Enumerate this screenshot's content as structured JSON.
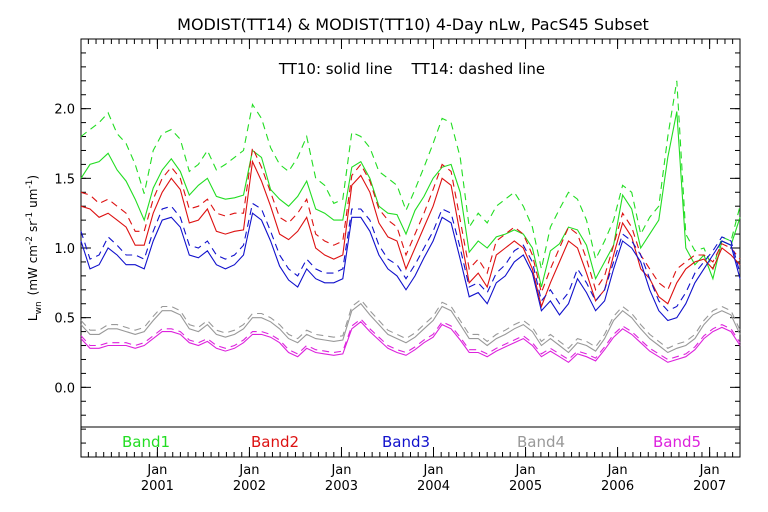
{
  "chart_data": {
    "type": "line",
    "title": "MODIST(TT14) & MODIST(TT10) 4-Day nLw, PacS45 Subset",
    "annotation": "TT10: solid line    TT14: dashed line",
    "ylabel": "Lwn (mW cm-2 sr-1 um-1)",
    "ylabel_base": "L",
    "ylabel_sub": "wn",
    "ylabel_rest": "(mW cm",
    "ylabel_sup1": "-2",
    "ylabel_mid": "sr",
    "ylabel_sup2": "-1",
    "ylabel_mid2": "um",
    "ylabel_sup3": "-1",
    "ylabel_close": ")",
    "ylim": [
      -0.5,
      2.5
    ],
    "xlim": [
      2000.17,
      2007.33
    ],
    "y_ticks": [
      "0.0",
      "0.5",
      "1.0",
      "1.5",
      "2.0"
    ],
    "y_tick_values": [
      0.0,
      0.5,
      1.0,
      1.5,
      2.0
    ],
    "x_tick_month": "Jan",
    "x_tick_years": [
      "2001",
      "2002",
      "2003",
      "2004",
      "2005",
      "2006",
      "2007"
    ],
    "x_tick_values": [
      2001,
      2002,
      2003,
      2004,
      2005,
      2006,
      2007
    ],
    "legend_placement": "bottom inside plot",
    "series": [
      {
        "name": "Band1",
        "color": "#22dd22",
        "solid": [
          1.5,
          1.6,
          1.62,
          1.68,
          1.56,
          1.48,
          1.35,
          1.2,
          1.43,
          1.56,
          1.64,
          1.55,
          1.38,
          1.45,
          1.5,
          1.37,
          1.35,
          1.36,
          1.38,
          1.7,
          1.65,
          1.42,
          1.35,
          1.3,
          1.37,
          1.48,
          1.28,
          1.25,
          1.2,
          1.2,
          1.58,
          1.62,
          1.5,
          1.3,
          1.25,
          1.24,
          1.1,
          1.27,
          1.37,
          1.5,
          1.58,
          1.6,
          1.4,
          0.97,
          1.05,
          1.0,
          1.08,
          1.1,
          1.13,
          1.1,
          1.0,
          0.72,
          0.98,
          1.03,
          1.15,
          1.13,
          1.02,
          0.78,
          0.9,
          1.02,
          1.38,
          1.28,
          1.0,
          1.1,
          1.2,
          1.65,
          1.98,
          1.0,
          0.88,
          0.95,
          0.78,
          1.05,
          1.02,
          1.22
        ],
        "dashed": [
          1.8,
          1.85,
          1.9,
          1.97,
          1.82,
          1.75,
          1.6,
          1.39,
          1.7,
          1.82,
          1.85,
          1.78,
          1.55,
          1.6,
          1.7,
          1.56,
          1.6,
          1.65,
          1.7,
          2.03,
          1.93,
          1.72,
          1.6,
          1.55,
          1.65,
          1.8,
          1.5,
          1.45,
          1.32,
          1.35,
          1.83,
          1.8,
          1.72,
          1.55,
          1.5,
          1.45,
          1.27,
          1.42,
          1.58,
          1.75,
          1.93,
          1.9,
          1.65,
          1.15,
          1.25,
          1.18,
          1.3,
          1.35,
          1.4,
          1.3,
          1.15,
          0.85,
          1.15,
          1.28,
          1.4,
          1.35,
          1.2,
          0.92,
          1.05,
          1.2,
          1.45,
          1.4,
          1.1,
          1.22,
          1.3,
          1.8,
          2.2,
          1.1,
          0.98,
          1.0,
          0.85,
          1.08,
          1.05,
          1.3
        ]
      },
      {
        "name": "Band2",
        "color": "#dd1111",
        "solid": [
          1.3,
          1.28,
          1.22,
          1.25,
          1.2,
          1.15,
          1.02,
          1.02,
          1.25,
          1.4,
          1.5,
          1.42,
          1.18,
          1.2,
          1.28,
          1.12,
          1.1,
          1.12,
          1.13,
          1.62,
          1.48,
          1.3,
          1.1,
          1.06,
          1.12,
          1.22,
          1.0,
          0.95,
          0.92,
          0.95,
          1.45,
          1.52,
          1.4,
          1.18,
          1.08,
          1.05,
          0.85,
          1.0,
          1.15,
          1.3,
          1.5,
          1.45,
          1.1,
          0.75,
          0.82,
          0.72,
          0.95,
          1.0,
          1.05,
          1.0,
          0.85,
          0.58,
          0.75,
          0.9,
          1.05,
          1.0,
          0.82,
          0.62,
          0.7,
          0.95,
          1.18,
          1.08,
          0.85,
          0.78,
          0.65,
          0.6,
          0.75,
          0.85,
          0.9,
          0.92,
          0.85,
          1.0,
          0.95,
          0.88
        ],
        "dashed": [
          1.4,
          1.38,
          1.32,
          1.35,
          1.3,
          1.25,
          1.12,
          1.12,
          1.35,
          1.5,
          1.58,
          1.5,
          1.28,
          1.3,
          1.35,
          1.25,
          1.23,
          1.25,
          1.25,
          1.72,
          1.58,
          1.4,
          1.22,
          1.18,
          1.25,
          1.35,
          1.1,
          1.05,
          1.02,
          1.05,
          1.52,
          1.6,
          1.48,
          1.28,
          1.2,
          1.15,
          0.95,
          1.1,
          1.25,
          1.42,
          1.6,
          1.55,
          1.2,
          0.85,
          0.92,
          0.82,
          1.05,
          1.1,
          1.15,
          1.1,
          0.95,
          0.68,
          0.85,
          1.0,
          1.15,
          1.1,
          0.92,
          0.7,
          0.8,
          1.02,
          1.25,
          1.15,
          0.95,
          0.85,
          0.75,
          0.7,
          0.85,
          0.9,
          0.95,
          0.95,
          0.9,
          1.03,
          1.0,
          0.92
        ]
      },
      {
        "name": "Band3",
        "color": "#1111cc",
        "solid": [
          1.05,
          0.85,
          0.88,
          1.0,
          0.95,
          0.88,
          0.88,
          0.85,
          1.05,
          1.2,
          1.22,
          1.15,
          0.95,
          0.93,
          0.98,
          0.88,
          0.85,
          0.88,
          0.95,
          1.25,
          1.2,
          1.05,
          0.87,
          0.77,
          0.72,
          0.85,
          0.78,
          0.75,
          0.75,
          0.78,
          1.22,
          1.22,
          1.12,
          0.95,
          0.85,
          0.8,
          0.7,
          0.8,
          0.93,
          1.05,
          1.22,
          1.18,
          0.92,
          0.65,
          0.68,
          0.6,
          0.75,
          0.8,
          0.9,
          0.95,
          0.82,
          0.55,
          0.62,
          0.52,
          0.6,
          0.78,
          0.68,
          0.55,
          0.62,
          0.85,
          1.05,
          1.0,
          0.9,
          0.7,
          0.55,
          0.48,
          0.5,
          0.6,
          0.75,
          0.85,
          0.95,
          1.05,
          1.02,
          0.78
        ],
        "dashed": [
          1.12,
          0.92,
          0.95,
          1.08,
          1.02,
          0.95,
          0.95,
          0.92,
          1.12,
          1.28,
          1.3,
          1.22,
          1.02,
          1.0,
          1.05,
          0.95,
          0.92,
          0.95,
          1.02,
          1.32,
          1.28,
          1.12,
          0.95,
          0.85,
          0.8,
          0.92,
          0.85,
          0.82,
          0.82,
          0.85,
          1.28,
          1.28,
          1.2,
          1.02,
          0.92,
          0.88,
          0.78,
          0.88,
          1.0,
          1.12,
          1.28,
          1.25,
          1.0,
          0.72,
          0.75,
          0.68,
          0.82,
          0.88,
          0.98,
          1.02,
          0.9,
          0.62,
          0.7,
          0.6,
          0.68,
          0.85,
          0.75,
          0.62,
          0.7,
          0.9,
          1.1,
          1.05,
          0.95,
          0.78,
          0.62,
          0.55,
          0.58,
          0.68,
          0.82,
          0.9,
          0.98,
          1.08,
          1.05,
          0.82
        ]
      },
      {
        "name": "Band4",
        "color": "#999999",
        "solid": [
          0.45,
          0.38,
          0.38,
          0.42,
          0.42,
          0.4,
          0.38,
          0.4,
          0.48,
          0.55,
          0.55,
          0.52,
          0.42,
          0.4,
          0.45,
          0.38,
          0.36,
          0.38,
          0.42,
          0.5,
          0.5,
          0.47,
          0.42,
          0.35,
          0.32,
          0.38,
          0.35,
          0.34,
          0.33,
          0.34,
          0.55,
          0.6,
          0.52,
          0.45,
          0.38,
          0.35,
          0.32,
          0.36,
          0.42,
          0.48,
          0.58,
          0.55,
          0.45,
          0.35,
          0.35,
          0.3,
          0.35,
          0.38,
          0.42,
          0.45,
          0.4,
          0.3,
          0.35,
          0.3,
          0.25,
          0.32,
          0.3,
          0.26,
          0.35,
          0.48,
          0.55,
          0.5,
          0.42,
          0.35,
          0.3,
          0.25,
          0.28,
          0.3,
          0.35,
          0.45,
          0.52,
          0.55,
          0.52,
          0.38
        ],
        "dashed": [
          0.48,
          0.41,
          0.41,
          0.45,
          0.45,
          0.43,
          0.41,
          0.43,
          0.51,
          0.58,
          0.58,
          0.55,
          0.45,
          0.43,
          0.48,
          0.41,
          0.39,
          0.41,
          0.45,
          0.53,
          0.53,
          0.5,
          0.45,
          0.38,
          0.35,
          0.41,
          0.38,
          0.37,
          0.36,
          0.37,
          0.58,
          0.63,
          0.55,
          0.48,
          0.41,
          0.38,
          0.35,
          0.39,
          0.45,
          0.51,
          0.61,
          0.58,
          0.48,
          0.38,
          0.38,
          0.33,
          0.38,
          0.41,
          0.45,
          0.48,
          0.43,
          0.33,
          0.38,
          0.33,
          0.28,
          0.35,
          0.33,
          0.29,
          0.38,
          0.51,
          0.58,
          0.53,
          0.45,
          0.38,
          0.33,
          0.28,
          0.31,
          0.33,
          0.38,
          0.48,
          0.55,
          0.58,
          0.55,
          0.41
        ]
      },
      {
        "name": "Band5",
        "color": "#dd22dd",
        "solid": [
          0.35,
          0.28,
          0.28,
          0.3,
          0.3,
          0.3,
          0.28,
          0.3,
          0.35,
          0.4,
          0.4,
          0.38,
          0.32,
          0.3,
          0.33,
          0.28,
          0.26,
          0.28,
          0.32,
          0.38,
          0.38,
          0.36,
          0.32,
          0.25,
          0.22,
          0.28,
          0.25,
          0.24,
          0.23,
          0.24,
          0.42,
          0.47,
          0.4,
          0.34,
          0.28,
          0.25,
          0.23,
          0.27,
          0.32,
          0.36,
          0.45,
          0.42,
          0.34,
          0.25,
          0.25,
          0.22,
          0.26,
          0.29,
          0.32,
          0.35,
          0.3,
          0.22,
          0.26,
          0.22,
          0.18,
          0.24,
          0.22,
          0.19,
          0.27,
          0.36,
          0.42,
          0.38,
          0.32,
          0.26,
          0.22,
          0.18,
          0.2,
          0.22,
          0.27,
          0.35,
          0.4,
          0.43,
          0.4,
          0.3
        ],
        "dashed": [
          0.37,
          0.3,
          0.3,
          0.32,
          0.32,
          0.32,
          0.3,
          0.32,
          0.37,
          0.42,
          0.42,
          0.4,
          0.34,
          0.32,
          0.35,
          0.3,
          0.28,
          0.3,
          0.34,
          0.4,
          0.4,
          0.38,
          0.34,
          0.27,
          0.24,
          0.3,
          0.27,
          0.26,
          0.25,
          0.26,
          0.44,
          0.49,
          0.42,
          0.36,
          0.3,
          0.27,
          0.25,
          0.29,
          0.34,
          0.38,
          0.47,
          0.44,
          0.36,
          0.27,
          0.27,
          0.24,
          0.28,
          0.31,
          0.34,
          0.37,
          0.32,
          0.24,
          0.28,
          0.24,
          0.2,
          0.26,
          0.24,
          0.21,
          0.29,
          0.38,
          0.44,
          0.4,
          0.34,
          0.28,
          0.24,
          0.2,
          0.22,
          0.24,
          0.29,
          0.37,
          0.42,
          0.45,
          0.42,
          0.32
        ]
      }
    ]
  }
}
